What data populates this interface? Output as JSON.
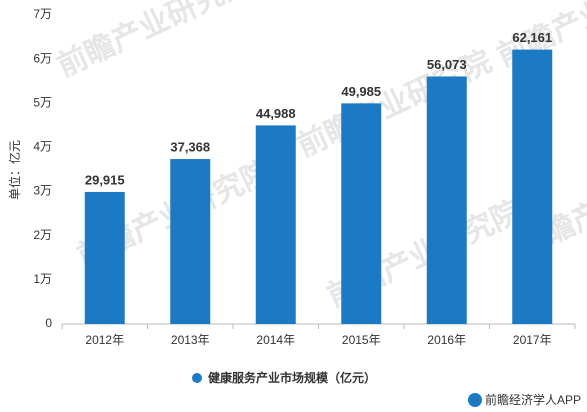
{
  "chart_data": {
    "type": "bar",
    "y_label": "单位：亿元",
    "categories": [
      "2012年",
      "2013年",
      "2014年",
      "2015年",
      "2016年",
      "2017年"
    ],
    "series": [
      {
        "name": "健康服务产业市场规模（亿元）",
        "color": "#1c7ac4",
        "values": [
          29915,
          37368,
          44988,
          49985,
          56073,
          62161
        ],
        "value_labels": [
          "29,915",
          "37,368",
          "44,988",
          "49,985",
          "56,073",
          "62,161"
        ]
      }
    ],
    "ylim": [
      0,
      70000
    ],
    "yticks": [
      0,
      {
        "value": 10000,
        "label": "1万"
      },
      {
        "value": 20000,
        "label": "2万"
      },
      {
        "value": 30000,
        "label": "3万"
      },
      {
        "value": 40000,
        "label": "4万"
      },
      {
        "value": 50000,
        "label": "5万"
      },
      {
        "value": 60000,
        "label": "6万"
      },
      {
        "value": 70000,
        "label": "7万"
      }
    ],
    "grid": false,
    "legend": "bottom",
    "watermark": "前瞻产业研究院",
    "footer": "前瞻经济学人APP"
  }
}
